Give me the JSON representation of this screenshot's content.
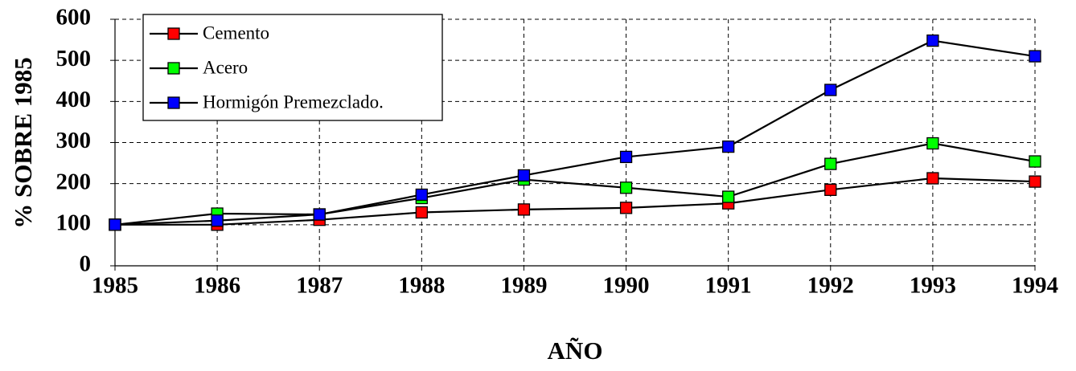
{
  "chart_data": {
    "type": "line",
    "x_label": "AÑO",
    "y_label": "% SOBRE 1985",
    "categories": [
      "1985",
      "1986",
      "1987",
      "1988",
      "1989",
      "1990",
      "1991",
      "1992",
      "1993",
      "1994"
    ],
    "series": [
      {
        "name": "Cemento",
        "color": "#ff0000",
        "values": [
          100,
          100,
          112,
          130,
          137,
          141,
          152,
          185,
          213,
          205
        ]
      },
      {
        "name": "Acero",
        "color": "#00ff00",
        "values": [
          100,
          127,
          125,
          165,
          210,
          190,
          168,
          248,
          298,
          254
        ]
      },
      {
        "name": "Hormigón Premezclado.",
        "color": "#0000ff",
        "values": [
          100,
          110,
          125,
          173,
          220,
          265,
          290,
          428,
          548,
          510
        ]
      }
    ],
    "line_color": "#000000",
    "ylim": [
      0,
      600
    ],
    "yticks": [
      0,
      100,
      200,
      300,
      400,
      500,
      600
    ],
    "grid": true,
    "legend": "top-left"
  }
}
